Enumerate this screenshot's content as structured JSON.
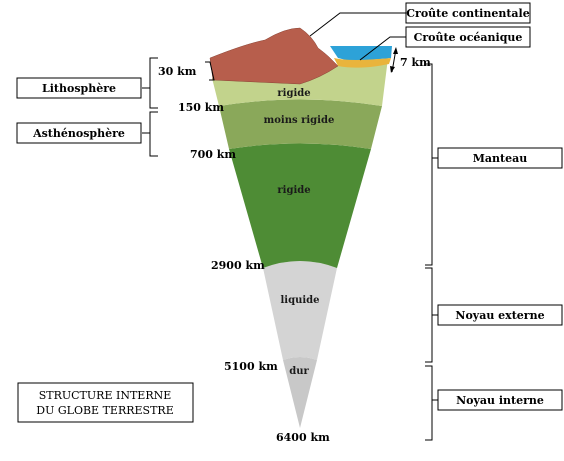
{
  "title_lines": [
    "STRUCTURE  INTERNE",
    "DU  GLOBE  TERRESTRE"
  ],
  "crust": {
    "continental": "Croûte continentale",
    "oceanic": "Croûte océanique"
  },
  "left_labels": {
    "lithosphere": "Lithosphère",
    "asthenosphere": "Asthénosphère"
  },
  "right_labels": {
    "manteau": "Manteau",
    "noyau_externe": "Noyau externe",
    "noyau_interne": "Noyau interne"
  },
  "depths": {
    "d7": "7 km",
    "d30": "30 km",
    "d150": "150 km",
    "d700": "700 km",
    "d2900": "2900 km",
    "d5100": "5100 km",
    "d6400": "6400 km"
  },
  "layers": {
    "rigide_top": "rigide",
    "moins_rigide": "moins rigide",
    "rigide_mid": "rigide",
    "liquide": "liquide",
    "dur": "dur"
  },
  "colors": {
    "continental_crust": "#b75e4c",
    "ocean": "#2da2d8",
    "oceanic_crust": "#e9b43c",
    "lithosphere_mantle": "#c2d38c",
    "asthenosphere": "#8aa85a",
    "lower_mantle": "#4e8c35",
    "outer_core": "#d4d4d4",
    "inner_core": "#c8c8c8"
  }
}
